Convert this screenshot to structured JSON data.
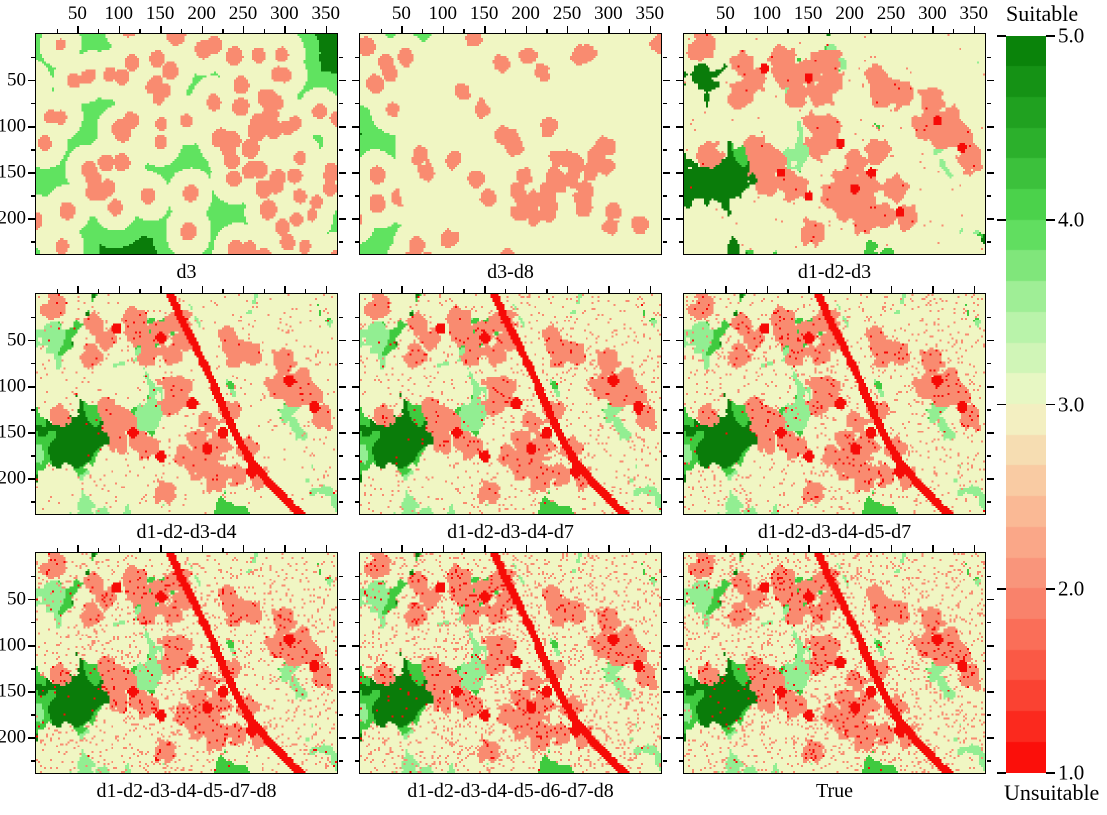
{
  "chart_data": {
    "type": "heatmap",
    "description": "3x3 grid of land-suitability classification raster maps (factor combinations d1..d8 vs the True map). Cell values range 1.0 (Unsuitable, red) to 5.0 (Suitable, dark green) on a stepped red-yellow-green colormap.",
    "x_domain": [
      0,
      366
    ],
    "y_domain": [
      0,
      241
    ],
    "x_ticks": [
      50,
      100,
      150,
      200,
      250,
      300,
      350
    ],
    "x_tick_labels": [
      "50",
      "100",
      "150",
      "200",
      "250",
      "300",
      "350"
    ],
    "x_minor_ticks": [
      25,
      75,
      125,
      175,
      225,
      275,
      325
    ],
    "y_ticks": [
      50,
      100,
      150,
      200
    ],
    "y_tick_labels": [
      "50",
      "100",
      "150",
      "200"
    ],
    "y_minor_ticks": [
      25,
      75,
      125,
      175,
      225
    ],
    "panels": [
      {
        "label": "d3",
        "row": 0,
        "col": 0,
        "mode": "rings",
        "seed": 11,
        "river": false,
        "speckle": 0,
        "salt": 1
      },
      {
        "label": "d3-d8",
        "row": 0,
        "col": 1,
        "mode": "bigcircle",
        "seed": 22,
        "river": false,
        "speckle": 0,
        "salt": 2
      },
      {
        "label": "d1-d2-d3",
        "row": 0,
        "col": 2,
        "mode": "complex",
        "seed": 7,
        "river": false,
        "speckle": 0.004,
        "salt": 3,
        "outer": true,
        "soft": true
      },
      {
        "label": "d1-d2-d3-d4",
        "row": 1,
        "col": 0,
        "mode": "complex",
        "seed": 7,
        "river": true,
        "speckle": 0.015,
        "salt": 4
      },
      {
        "label": "d1-d2-d3-d4-d7",
        "row": 1,
        "col": 1,
        "mode": "complex",
        "seed": 7,
        "river": true,
        "speckle": 0.028,
        "salt": 5
      },
      {
        "label": "d1-d2-d3-d4-d5-d7",
        "row": 1,
        "col": 2,
        "mode": "complex",
        "seed": 7,
        "river": true,
        "speckle": 0.034,
        "salt": 6
      },
      {
        "label": "d1-d2-d3-d4-d5-d7-d8",
        "row": 2,
        "col": 0,
        "mode": "complex",
        "seed": 7,
        "river": true,
        "speckle": 0.045,
        "salt": 7
      },
      {
        "label": "d1-d2-d3-d4-d5-d6-d7-d8",
        "row": 2,
        "col": 1,
        "mode": "complex",
        "seed": 7,
        "river": true,
        "speckle": 0.06,
        "salt": 8
      },
      {
        "label": "True",
        "row": 2,
        "col": 2,
        "mode": "complex",
        "seed": 7,
        "river": true,
        "speckle": 0.06,
        "salt": 9
      }
    ],
    "colorbar": {
      "min": 1.0,
      "max": 5.0,
      "steps": 24,
      "tick_values": [
        5,
        4,
        3,
        2,
        1
      ],
      "tick_labels": [
        "5.0",
        "4.0",
        "3.0",
        "2.0",
        "1.0"
      ],
      "top_label": "Suitable",
      "bottom_label": "Unsuitable",
      "anchors": [
        {
          "v": 5.0,
          "c": "#057c05"
        },
        {
          "v": 4.5,
          "c": "#25a825"
        },
        {
          "v": 4.0,
          "c": "#52da52"
        },
        {
          "v": 3.5,
          "c": "#aef2a4"
        },
        {
          "v": 3.0,
          "c": "#f2f8c9"
        },
        {
          "v": 2.5,
          "c": "#fac29b"
        },
        {
          "v": 2.0,
          "c": "#f98c74"
        },
        {
          "v": 1.5,
          "c": "#fa4f3c"
        },
        {
          "v": 1.0,
          "c": "#fb0200"
        }
      ]
    },
    "palette": {
      "unsuitable_red": "#f60b07",
      "salmon": "#f98b70",
      "cream": "#f0f6c3",
      "ring_green": "#60e360",
      "light_green": "#92ee92",
      "medium_green": "#3fca3f",
      "dark_green": "#0a7c0a"
    }
  }
}
